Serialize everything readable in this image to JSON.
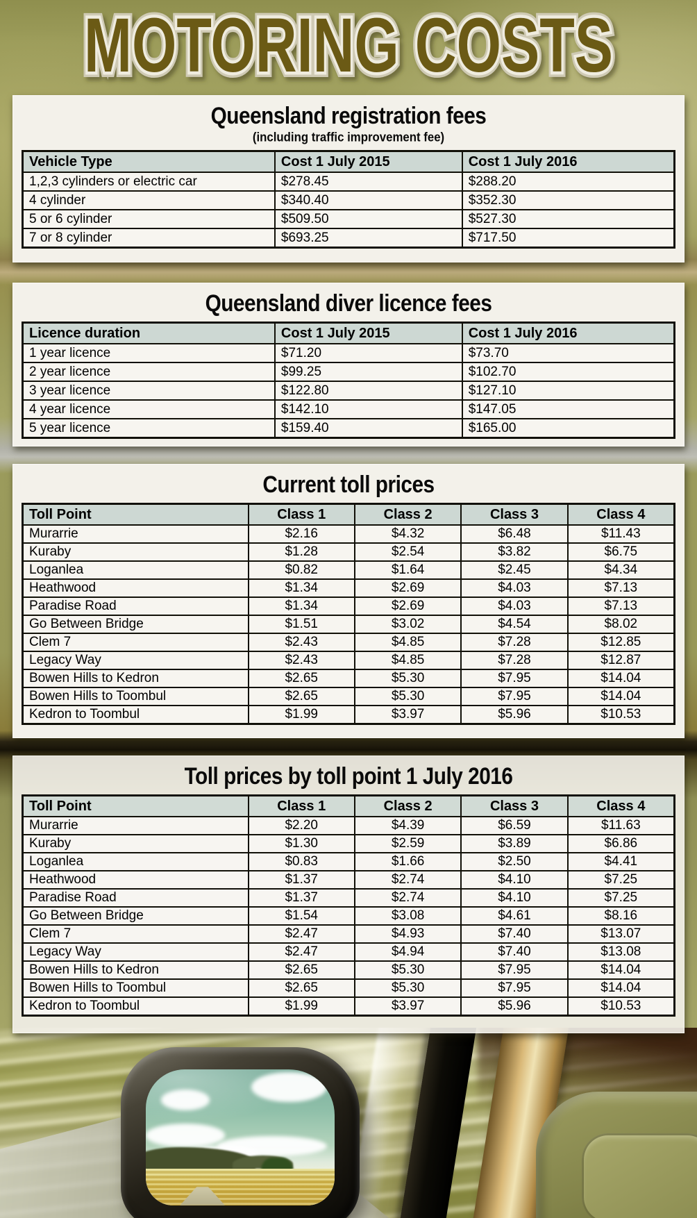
{
  "page": {
    "title": "MOTORING COSTS"
  },
  "colors": {
    "background_olive": "#9b9b59",
    "panel_bg": "#f3f1ea",
    "table_header_bg": "#cdd8d3",
    "table_border": "#111008",
    "title_fill": "#6b5a15",
    "title_outline": "#efecdf"
  },
  "tables": [
    {
      "title": "Queensland registration fees",
      "subtitle": "(including traffic improvement fee)",
      "headers": [
        "Vehicle Type",
        "Cost 1 July 2015",
        "Cost 1 July 2016"
      ],
      "rows": [
        [
          "1,2,3 cylinders or electric car",
          "$278.45",
          "$288.20"
        ],
        [
          "4 cylinder",
          "$340.40",
          "$352.30"
        ],
        [
          "5 or 6 cylinder",
          "$509.50",
          "$527.30"
        ],
        [
          "7 or 8 cylinder",
          "$693.25",
          "$717.50"
        ]
      ]
    },
    {
      "title": "Queensland diver licence fees",
      "headers": [
        "Licence duration",
        "Cost 1 July 2015",
        "Cost 1 July 2016"
      ],
      "rows": [
        [
          "1 year licence",
          "$71.20",
          "$73.70"
        ],
        [
          "2 year licence",
          "$99.25",
          "$102.70"
        ],
        [
          "3 year licence",
          "$122.80",
          "$127.10"
        ],
        [
          "4 year licence",
          "$142.10",
          "$147.05"
        ],
        [
          "5 year licence",
          "$159.40",
          "$165.00"
        ]
      ]
    },
    {
      "title": "Current toll prices",
      "headers": [
        "Toll Point",
        "Class 1",
        "Class 2",
        "Class 3",
        "Class 4"
      ],
      "rows": [
        [
          "Murarrie",
          "$2.16",
          "$4.32",
          "$6.48",
          "$11.43"
        ],
        [
          "Kuraby",
          "$1.28",
          "$2.54",
          "$3.82",
          "$6.75"
        ],
        [
          "Loganlea",
          "$0.82",
          "$1.64",
          "$2.45",
          "$4.34"
        ],
        [
          "Heathwood",
          "$1.34",
          "$2.69",
          "$4.03",
          "$7.13"
        ],
        [
          "Paradise Road",
          "$1.34",
          "$2.69",
          "$4.03",
          "$7.13"
        ],
        [
          "Go Between Bridge",
          "$1.51",
          "$3.02",
          "$4.54",
          "$8.02"
        ],
        [
          "Clem 7",
          "$2.43",
          "$4.85",
          "$7.28",
          "$12.85"
        ],
        [
          "Legacy Way",
          "$2.43",
          "$4.85",
          "$7.28",
          "$12.87"
        ],
        [
          "Bowen Hills to Kedron",
          "$2.65",
          "$5.30",
          "$7.95",
          "$14.04"
        ],
        [
          "Bowen Hills to Toombul",
          "$2.65",
          "$5.30",
          "$7.95",
          "$14.04"
        ],
        [
          "Kedron to Toombul",
          "$1.99",
          "$3.97",
          "$5.96",
          "$10.53"
        ]
      ]
    },
    {
      "title": "Toll prices by toll point 1 July 2016",
      "headers": [
        "Toll Point",
        "Class 1",
        "Class 2",
        "Class 3",
        "Class 4"
      ],
      "rows": [
        [
          "Murarrie",
          "$2.20",
          "$4.39",
          "$6.59",
          "$11.63"
        ],
        [
          "Kuraby",
          "$1.30",
          "$2.59",
          "$3.89",
          "$6.86"
        ],
        [
          "Loganlea",
          "$0.83",
          "$1.66",
          "$2.50",
          "$4.41"
        ],
        [
          "Heathwood",
          "$1.37",
          "$2.74",
          "$4.10",
          "$7.25"
        ],
        [
          "Paradise Road",
          "$1.37",
          "$2.74",
          "$4.10",
          "$7.25"
        ],
        [
          "Go Between Bridge",
          "$1.54",
          "$3.08",
          "$4.61",
          "$8.16"
        ],
        [
          "Clem 7",
          "$2.47",
          "$4.93",
          "$7.40",
          "$13.07"
        ],
        [
          "Legacy Way",
          "$2.47",
          "$4.94",
          "$7.40",
          "$13.08"
        ],
        [
          "Bowen Hills to Kedron",
          "$2.65",
          "$5.30",
          "$7.95",
          "$14.04"
        ],
        [
          "Bowen Hills to Toombul",
          "$2.65",
          "$5.30",
          "$7.95",
          "$14.04"
        ],
        [
          "Kedron to Toombul",
          "$1.99",
          "$3.97",
          "$5.96",
          "$10.53"
        ]
      ]
    }
  ]
}
